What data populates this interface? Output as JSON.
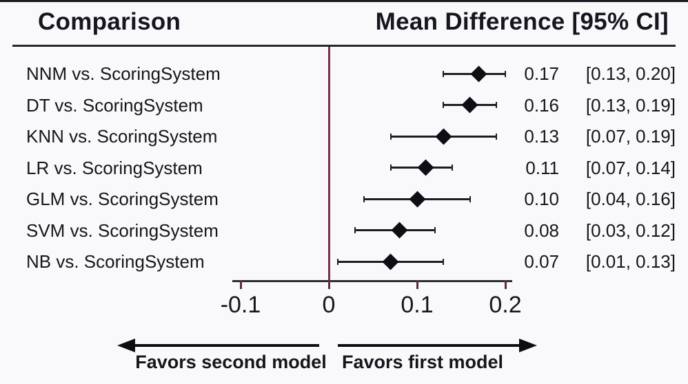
{
  "header": {
    "comparison": "Comparison",
    "effect": "Mean Difference [95% CI]"
  },
  "favors": {
    "left_label": "Favors second model",
    "right_label": "Favors first model"
  },
  "colors": {
    "background": "#f9f9fb",
    "reference_line": "#7b2d50",
    "axis_line": "#2c2c34",
    "tick": "#5c2c44",
    "marker": "#0e0e14",
    "whisker": "#1c1c24",
    "text": "#15151d",
    "top_border": "#1a1a22"
  },
  "chart_data": {
    "type": "forest",
    "title": "Mean Difference [95% CI]",
    "xlabel": "",
    "ylabel": "",
    "xlim": [
      -0.115,
      0.21
    ],
    "reference_value": 0,
    "grid": false,
    "axis_tick_values": [
      -0.1,
      0,
      0.1,
      0.2
    ],
    "axis_tick_labels": [
      "-0.1",
      "0",
      "0.1",
      "0.2"
    ],
    "rows": [
      {
        "label": "NNM vs. ScoringSystem",
        "mean": 0.17,
        "lower": 0.13,
        "upper": 0.2,
        "estimate_text": "0.17",
        "ci_text": "[0.13, 0.20]"
      },
      {
        "label": "DT vs. ScoringSystem",
        "mean": 0.16,
        "lower": 0.13,
        "upper": 0.19,
        "estimate_text": "0.16",
        "ci_text": "[0.13, 0.19]"
      },
      {
        "label": "KNN vs. ScoringSystem",
        "mean": 0.13,
        "lower": 0.07,
        "upper": 0.19,
        "estimate_text": "0.13",
        "ci_text": "[0.07, 0.19]"
      },
      {
        "label": "LR vs. ScoringSystem",
        "mean": 0.11,
        "lower": 0.07,
        "upper": 0.14,
        "estimate_text": "0.11",
        "ci_text": "[0.07, 0.14]"
      },
      {
        "label": "GLM vs. ScoringSystem",
        "mean": 0.1,
        "lower": 0.04,
        "upper": 0.16,
        "estimate_text": "0.10",
        "ci_text": "[0.04, 0.16]"
      },
      {
        "label": "SVM vs. ScoringSystem",
        "mean": 0.08,
        "lower": 0.03,
        "upper": 0.12,
        "estimate_text": "0.08",
        "ci_text": "[0.03, 0.12]"
      },
      {
        "label": "NB vs. ScoringSystem",
        "mean": 0.07,
        "lower": 0.01,
        "upper": 0.13,
        "estimate_text": "0.07",
        "ci_text": "[0.01, 0.13]"
      }
    ]
  }
}
